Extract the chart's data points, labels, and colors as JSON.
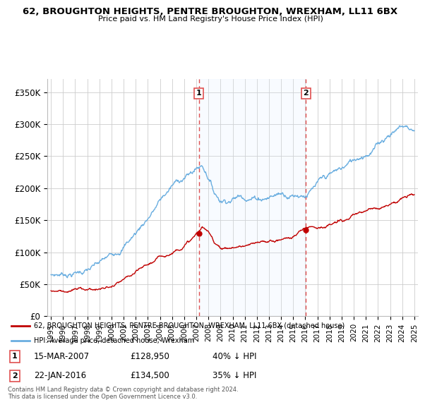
{
  "title": "62, BROUGHTON HEIGHTS, PENTRE BROUGHTON, WREXHAM, LL11 6BX",
  "subtitle": "Price paid vs. HM Land Registry's House Price Index (HPI)",
  "legend_line1": "62, BROUGHTON HEIGHTS, PENTRE BROUGHTON, WREXHAM, LL11 6BX (detached house)",
  "legend_line2": "HPI: Average price, detached house, Wrexham",
  "footer": "Contains HM Land Registry data © Crown copyright and database right 2024.\nThis data is licensed under the Open Government Licence v3.0.",
  "annotation1": {
    "label": "1",
    "date": "15-MAR-2007",
    "price": "£128,950",
    "pct": "40% ↓ HPI",
    "x_year": 2007.21
  },
  "annotation2": {
    "label": "2",
    "date": "22-JAN-2016",
    "price": "£134,500",
    "pct": "35% ↓ HPI",
    "x_year": 2016.06
  },
  "hpi_color": "#6aaee0",
  "price_color": "#c00000",
  "vline_color": "#e05050",
  "shade_color": "#ddeeff",
  "background_color": "#ffffff",
  "grid_color": "#cccccc",
  "ylim": [
    0,
    370000
  ],
  "yticks": [
    0,
    50000,
    100000,
    150000,
    200000,
    250000,
    300000,
    350000
  ],
  "ytick_labels": [
    "£0",
    "£50K",
    "£100K",
    "£150K",
    "£200K",
    "£250K",
    "£300K",
    "£350K"
  ],
  "xlim": [
    1994.7,
    2025.3
  ],
  "hpi_key_years": [
    1995,
    1996,
    1997,
    1998,
    1999,
    2000,
    2001,
    2002,
    2003,
    2004,
    2005,
    2006,
    2006.5,
    2007.0,
    2007.5,
    2008.0,
    2008.5,
    2009.0,
    2009.5,
    2010,
    2011,
    2012,
    2013,
    2014,
    2015,
    2016,
    2017,
    2018,
    2019,
    2020,
    2021,
    2022,
    2022.5,
    2023,
    2023.5,
    2024,
    2024.5,
    2025
  ],
  "hpi_key_vals": [
    65000,
    67000,
    70000,
    74000,
    78000,
    85000,
    105000,
    125000,
    150000,
    175000,
    195000,
    208000,
    212000,
    220000,
    225000,
    210000,
    185000,
    175000,
    178000,
    182000,
    188000,
    188000,
    192000,
    198000,
    200000,
    205000,
    215000,
    220000,
    225000,
    235000,
    250000,
    265000,
    275000,
    285000,
    292000,
    297000,
    295000,
    290000
  ],
  "price_key_years": [
    1995,
    1996,
    1997,
    1998,
    1999,
    2000,
    2001,
    2002,
    2003,
    2004,
    2005,
    2006,
    2006.8,
    2007.21,
    2007.5,
    2008.0,
    2008.5,
    2009.0,
    2009.5,
    2010,
    2011,
    2012,
    2013,
    2014,
    2015,
    2016.06,
    2016.5,
    2017,
    2018,
    2019,
    2020,
    2021,
    2022,
    2023,
    2024,
    2025
  ],
  "price_key_vals": [
    40000,
    42000,
    44000,
    44500,
    46000,
    48000,
    55000,
    62000,
    72000,
    82000,
    92000,
    108000,
    120000,
    128950,
    135000,
    125000,
    110000,
    105000,
    103000,
    105000,
    108000,
    108000,
    110000,
    115000,
    120000,
    134500,
    138000,
    140000,
    143000,
    147000,
    152000,
    158000,
    165000,
    175000,
    185000,
    190000
  ]
}
